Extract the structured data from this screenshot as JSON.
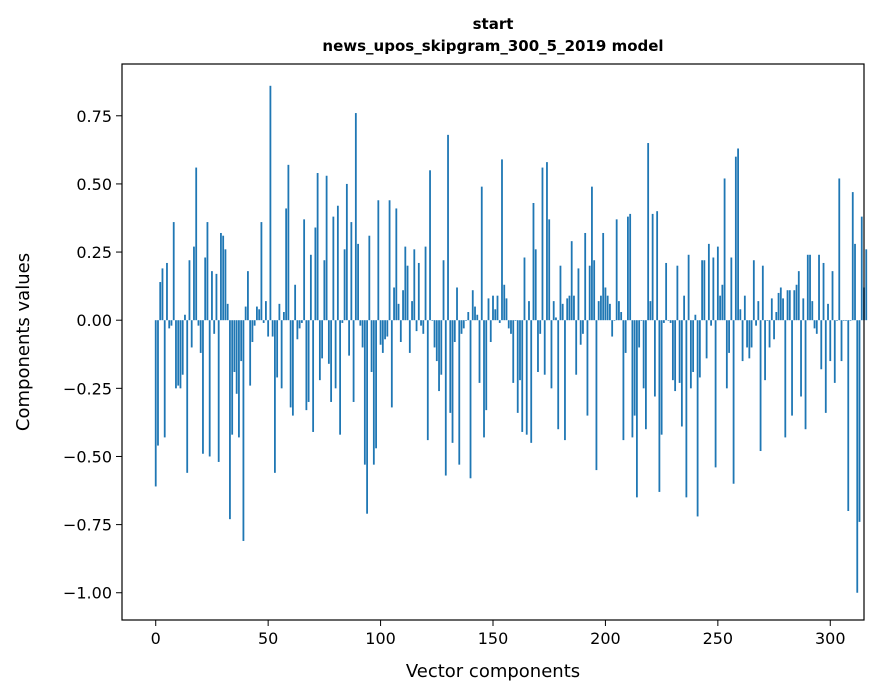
{
  "chart_data": {
    "type": "bar",
    "title": "start",
    "subtitle": "news_upos_skipgram_300_5_2019 model",
    "xlabel": "Vector components",
    "ylabel": "Components values",
    "xlim": [
      -15,
      315
    ],
    "ylim": [
      -1.1,
      0.94
    ],
    "xticks": [
      0,
      50,
      100,
      150,
      200,
      250,
      300
    ],
    "yticks": [
      -1.0,
      -0.75,
      -0.5,
      -0.25,
      0.0,
      0.25,
      0.5,
      0.75
    ],
    "ytick_labels": [
      "−1.00",
      "−0.75",
      "−0.50",
      "−0.25",
      "0.00",
      "0.25",
      "0.50",
      "0.75"
    ],
    "grid": false,
    "bar_color": "#1f77b4",
    "values": [
      -0.61,
      -0.46,
      0.14,
      0.19,
      -0.43,
      0.21,
      -0.03,
      -0.02,
      0.36,
      -0.25,
      -0.24,
      -0.25,
      -0.2,
      0.02,
      -0.56,
      0.22,
      -0.1,
      0.27,
      0.56,
      -0.02,
      -0.12,
      -0.49,
      0.23,
      0.36,
      -0.5,
      0.18,
      -0.05,
      0.17,
      -0.52,
      0.32,
      0.31,
      0.26,
      0.06,
      -0.73,
      -0.42,
      -0.19,
      -0.27,
      -0.43,
      -0.15,
      -0.81,
      0.05,
      0.18,
      -0.24,
      -0.08,
      -0.02,
      0.05,
      0.04,
      0.36,
      -0.01,
      0.07,
      -0.06,
      0.86,
      -0.06,
      -0.56,
      -0.21,
      0.06,
      -0.25,
      0.03,
      0.41,
      0.57,
      -0.32,
      -0.35,
      0.13,
      -0.07,
      -0.03,
      -0.01,
      0.37,
      -0.33,
      -0.3,
      0.24,
      -0.41,
      0.34,
      0.54,
      -0.22,
      -0.14,
      0.22,
      0.53,
      -0.16,
      -0.3,
      0.38,
      -0.25,
      0.42,
      -0.42,
      -0.01,
      0.26,
      0.5,
      -0.13,
      0.36,
      -0.3,
      0.76,
      0.28,
      -0.02,
      -0.1,
      -0.53,
      -0.71,
      0.31,
      -0.19,
      -0.53,
      -0.47,
      0.44,
      -0.09,
      -0.12,
      -0.07,
      -0.06,
      0.44,
      -0.32,
      0.12,
      0.41,
      0.06,
      -0.08,
      0.11,
      0.27,
      0.2,
      -0.12,
      0.07,
      0.26,
      -0.04,
      0.21,
      -0.02,
      -0.05,
      0.27,
      -0.44,
      0.55,
      0.0,
      -0.1,
      -0.15,
      -0.26,
      -0.2,
      0.22,
      -0.57,
      0.68,
      -0.34,
      -0.45,
      -0.08,
      0.12,
      -0.53,
      -0.05,
      -0.03,
      0.0,
      0.03,
      -0.58,
      0.11,
      0.05,
      0.02,
      -0.23,
      0.49,
      -0.43,
      -0.33,
      0.08,
      -0.08,
      0.09,
      0.04,
      0.09,
      -0.01,
      0.59,
      0.13,
      0.08,
      -0.03,
      -0.05,
      -0.23,
      0.0,
      -0.34,
      -0.22,
      -0.41,
      0.23,
      -0.42,
      0.07,
      -0.45,
      0.43,
      0.26,
      -0.19,
      -0.05,
      0.56,
      -0.2,
      0.58,
      0.37,
      -0.25,
      0.07,
      0.01,
      -0.4,
      0.2,
      0.06,
      -0.44,
      0.08,
      0.09,
      0.29,
      0.09,
      -0.2,
      0.19,
      -0.09,
      -0.05,
      0.32,
      -0.35,
      0.2,
      0.49,
      0.22,
      -0.55,
      0.07,
      0.09,
      0.32,
      0.12,
      0.09,
      0.06,
      -0.06,
      0.0,
      0.37,
      0.07,
      0.03,
      -0.44,
      -0.12,
      0.38,
      0.39,
      -0.43,
      -0.35,
      -0.65,
      -0.1,
      0.0,
      -0.25,
      -0.4,
      0.65,
      0.07,
      0.39,
      -0.28,
      0.4,
      -0.63,
      -0.42,
      -0.01,
      0.21,
      0.0,
      -0.01,
      -0.22,
      -0.26,
      0.2,
      -0.23,
      -0.39,
      0.09,
      -0.65,
      0.24,
      -0.25,
      -0.19,
      0.02,
      -0.72,
      -0.21,
      0.22,
      0.22,
      -0.14,
      0.28,
      -0.02,
      0.23,
      -0.54,
      0.27,
      0.09,
      0.13,
      0.52,
      -0.25,
      -0.12,
      0.23,
      -0.6,
      0.6,
      0.63,
      0.04,
      -0.15,
      0.09,
      -0.1,
      -0.14,
      -0.1,
      0.22,
      -0.02,
      0.07,
      -0.48,
      0.2,
      -0.22,
      0.0,
      -0.1,
      0.08,
      -0.07,
      0.03,
      0.1,
      0.12,
      0.08,
      -0.43,
      0.11,
      0.11,
      -0.35,
      0.11,
      0.13,
      0.18,
      -0.28,
      0.08,
      -0.4,
      0.24,
      0.24,
      0.07,
      -0.03,
      -0.05,
      0.24,
      -0.18,
      0.21,
      -0.34,
      0.06,
      -0.15,
      0.18,
      -0.23,
      0.0,
      0.52,
      -0.15,
      0.0,
      0.0,
      -0.7,
      0.0,
      0.47,
      0.28,
      -1.0,
      -0.74,
      0.38,
      0.12,
      0.26
    ]
  }
}
